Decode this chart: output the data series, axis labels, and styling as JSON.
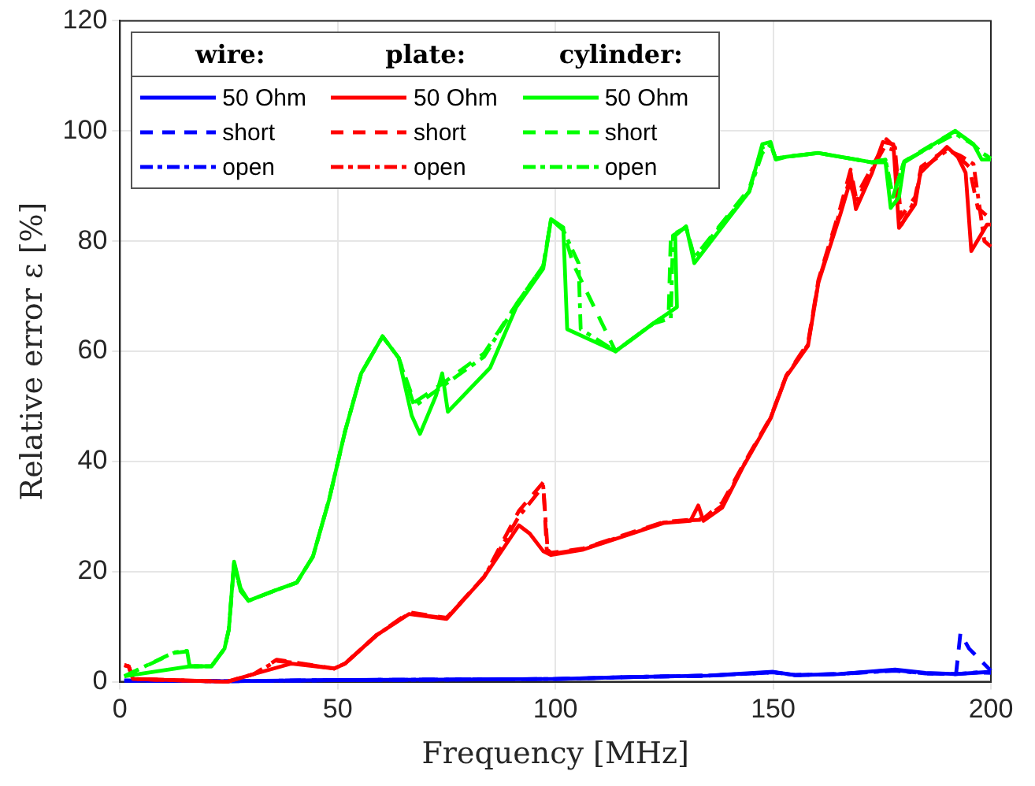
{
  "chart_data": {
    "type": "line",
    "xlabel": "Frequency [MHz]",
    "ylabel": "Relative error ε [%]",
    "xlim": [
      0,
      200
    ],
    "xticks": [
      0,
      50,
      100,
      150,
      200
    ],
    "ylim": [
      0,
      120
    ],
    "yticks": [
      0,
      20,
      40,
      60,
      80,
      100,
      120
    ],
    "grid": true,
    "legend": "top left",
    "marker": "none",
    "annotations": [
      "wire:",
      "plate:",
      "cylinder:"
    ],
    "series": [
      {
        "name": "50 Ohm",
        "color": "#0000ff",
        "line_style": "solid",
        "x": [
          1,
          25,
          50,
          75,
          100,
          120,
          135,
          150,
          155,
          165,
          178,
          185,
          192,
          200
        ],
        "values": [
          0.2,
          0.1,
          0.3,
          0.4,
          0.5,
          0.9,
          1.1,
          1.8,
          1.2,
          1.4,
          2.2,
          1.6,
          1.4,
          1.8
        ]
      },
      {
        "name": "short",
        "color": "#0000ff",
        "line_style": "dashed",
        "x": [
          1,
          25,
          50,
          75,
          100,
          120,
          135,
          150,
          155,
          165,
          178,
          185,
          192,
          193,
          195,
          198,
          200
        ],
        "values": [
          0.2,
          0.1,
          0.3,
          0.4,
          0.5,
          0.9,
          1.1,
          1.7,
          1.2,
          1.4,
          2.1,
          1.5,
          1.4,
          8.8,
          6,
          3.6,
          2
        ]
      },
      {
        "name": "open",
        "color": "#0000ff",
        "line_style": "dashdot",
        "x": [
          1,
          25,
          50,
          75,
          100,
          120,
          135,
          150,
          155,
          165,
          178,
          185,
          192,
          197,
          200
        ],
        "values": [
          0.2,
          0.1,
          0.3,
          0.4,
          0.5,
          0.9,
          1.1,
          1.7,
          1.2,
          1.4,
          2,
          1.5,
          1.4,
          1.7,
          1.6
        ]
      },
      {
        "name": "50 Ohm",
        "color": "#ff0000",
        "line_style": "solid",
        "x": [
          1,
          2,
          3,
          24.6,
          30.8,
          39.4,
          49.2,
          51.7,
          59,
          66.4,
          75,
          83.6,
          91.6,
          94.1,
          97.2,
          99,
          106.4,
          124.8,
          131,
          132.8,
          134,
          138.3,
          143.2,
          149.4,
          153,
          158,
          160.4,
          165.4,
          167.2,
          167.8,
          169,
          172.7,
          175.2,
          177.6,
          178.9,
          182.6,
          183.8,
          189.9,
          192.4,
          194.2,
          195.5,
          199.1,
          200
        ],
        "values": [
          3,
          2.8,
          0.5,
          0,
          1.4,
          3.3,
          2.4,
          3.3,
          8.5,
          12.3,
          11.4,
          19,
          28.4,
          26.9,
          23.7,
          23,
          24,
          28.8,
          29.2,
          32,
          29.2,
          31.6,
          39.2,
          47.8,
          55.4,
          61,
          72.5,
          84.8,
          89.6,
          92.4,
          85.8,
          92.4,
          98,
          97.6,
          82.4,
          86.7,
          92.4,
          97.1,
          95.3,
          92.4,
          78.2,
          83,
          83
        ]
      },
      {
        "name": "short",
        "color": "#ff0000",
        "line_style": "dashed",
        "x": [
          1,
          2,
          3,
          24.6,
          30.8,
          36,
          39.4,
          49.2,
          51.7,
          59,
          66.4,
          75,
          83.6,
          91.6,
          97.2,
          98,
          99,
          106.4,
          124.8,
          131,
          134,
          138.3,
          143.2,
          149.4,
          153,
          158,
          160.4,
          165.4,
          167.8,
          169,
          172.7,
          176,
          178,
          179,
          182.6,
          184,
          190,
          193,
          195,
          197,
          200
        ],
        "values": [
          3,
          2.8,
          0.5,
          0,
          1.4,
          4,
          3.6,
          2.4,
          3.3,
          8.5,
          12.6,
          11.6,
          19,
          31,
          36.2,
          24,
          23.4,
          24.2,
          29,
          29.4,
          29.6,
          32.5,
          39.5,
          48,
          55.6,
          61.5,
          73,
          86,
          93,
          88,
          93.4,
          98.5,
          97,
          84,
          88,
          93.5,
          96.8,
          95,
          93.5,
          86,
          84
        ]
      },
      {
        "name": "open",
        "color": "#ff0000",
        "line_style": "dashdot",
        "x": [
          1,
          2,
          3,
          24.6,
          30.8,
          36,
          39.4,
          49.2,
          51.7,
          59,
          66.4,
          75,
          83.6,
          91.6,
          97.2,
          98.2,
          99,
          106.4,
          124.8,
          131,
          134,
          138.3,
          143.2,
          149.4,
          153,
          158,
          160.4,
          165.4,
          167.5,
          169,
          172.7,
          175.5,
          178,
          179.5,
          182.6,
          184,
          190,
          193,
          196,
          198.5,
          200
        ],
        "values": [
          3,
          2.8,
          0.5,
          0,
          1.4,
          3.8,
          3.5,
          2.4,
          3.3,
          8.5,
          12.4,
          11.5,
          19,
          30,
          35.5,
          24,
          23.2,
          24.1,
          28.9,
          29.3,
          29.4,
          32,
          39.3,
          47.9,
          55.5,
          61.2,
          72.7,
          85.5,
          91,
          87,
          93,
          97,
          96.5,
          83,
          87.5,
          93,
          96.5,
          95.5,
          94,
          80,
          79
        ]
      },
      {
        "name": "50 Ohm",
        "color": "#00ff00",
        "line_style": "solid",
        "x": [
          1,
          16,
          21,
          24,
          25,
          26.2,
          27.7,
          29.5,
          35.7,
          40.6,
          44.3,
          48,
          51.7,
          55.4,
          60.3,
          64,
          67,
          68.9,
          72.6,
          74,
          75.3,
          85,
          91,
          97.2,
          99,
          101.8,
          102.7,
          113.8,
          122.4,
          127.9,
          127.5,
          130,
          131.9,
          144.5,
          147.5,
          149.4,
          150.6,
          153,
          160.4,
          172.7,
          175.8,
          177,
          178.9,
          180.1,
          191.8,
          196,
          197.9,
          200
        ],
        "values": [
          1,
          2.8,
          2.8,
          6,
          9.5,
          21.8,
          17,
          14.7,
          16.6,
          18,
          22.7,
          33,
          45.5,
          56,
          62.7,
          58.8,
          48.3,
          45,
          52,
          56,
          49,
          57,
          68,
          75,
          84,
          82.5,
          64,
          60,
          65,
          68,
          81,
          82.7,
          76,
          89,
          97.6,
          98,
          94.8,
          95.3,
          96,
          94.3,
          94.3,
          86,
          88,
          94.3,
          100,
          97.6,
          94.8,
          94.8
        ]
      },
      {
        "name": "short",
        "color": "#00ff00",
        "line_style": "dashed",
        "x": [
          1,
          12.3,
          15.4,
          16,
          21,
          24,
          25,
          26.2,
          27.7,
          29.5,
          35.7,
          40.6,
          44.3,
          48,
          51.7,
          55.4,
          60.3,
          64,
          67.6,
          73.8,
          83.6,
          91,
          97.2,
          99,
          101.8,
          104,
          113.8,
          122.4,
          126,
          126.5,
          130,
          131.9,
          144.5,
          147.5,
          149.4,
          150.6,
          153,
          160.4,
          172.7,
          175.8,
          177.5,
          180.1,
          191.8,
          196,
          198,
          200
        ],
        "values": [
          1,
          5.2,
          5.5,
          2.8,
          2.8,
          6,
          9.5,
          21.5,
          16.5,
          14.7,
          16.6,
          18,
          22.7,
          33,
          45.5,
          56,
          62.7,
          58.8,
          50.7,
          54,
          59.6,
          68.5,
          75.5,
          84,
          82,
          76,
          60,
          65,
          67,
          81,
          82.5,
          77,
          89.5,
          97,
          97.5,
          95,
          95.3,
          96,
          94.3,
          94.8,
          88,
          94.5,
          100,
          97.5,
          96,
          95
        ]
      },
      {
        "name": "open",
        "color": "#00ff00",
        "line_style": "dashdot",
        "x": [
          1,
          12.3,
          15.4,
          16,
          21,
          24,
          25,
          26.2,
          27.7,
          29.5,
          35.7,
          40.6,
          44.3,
          48,
          51.7,
          55.4,
          60.3,
          64,
          67.6,
          73.8,
          83.6,
          91,
          97.2,
          99,
          101.8,
          105.3,
          105.8,
          113.8,
          122.4,
          126.5,
          127,
          130,
          131.9,
          144.5,
          147.5,
          149.4,
          150.6,
          153,
          160.4,
          172.7,
          175.8,
          177.5,
          180.1,
          191.8,
          196,
          198,
          200
        ],
        "values": [
          1,
          5.3,
          5.6,
          2.8,
          2.8,
          6,
          9.5,
          21.5,
          16.5,
          14.7,
          16.6,
          18,
          22.7,
          33,
          45.5,
          56,
          62.7,
          58.8,
          50,
          53.5,
          59,
          68.5,
          75.5,
          84,
          82,
          76,
          64,
          60,
          65,
          66,
          81,
          82.5,
          77,
          89,
          96,
          97.5,
          95,
          95.3,
          96,
          94.3,
          94.8,
          88,
          94.5,
          99.5,
          97.5,
          96,
          95
        ]
      }
    ]
  }
}
